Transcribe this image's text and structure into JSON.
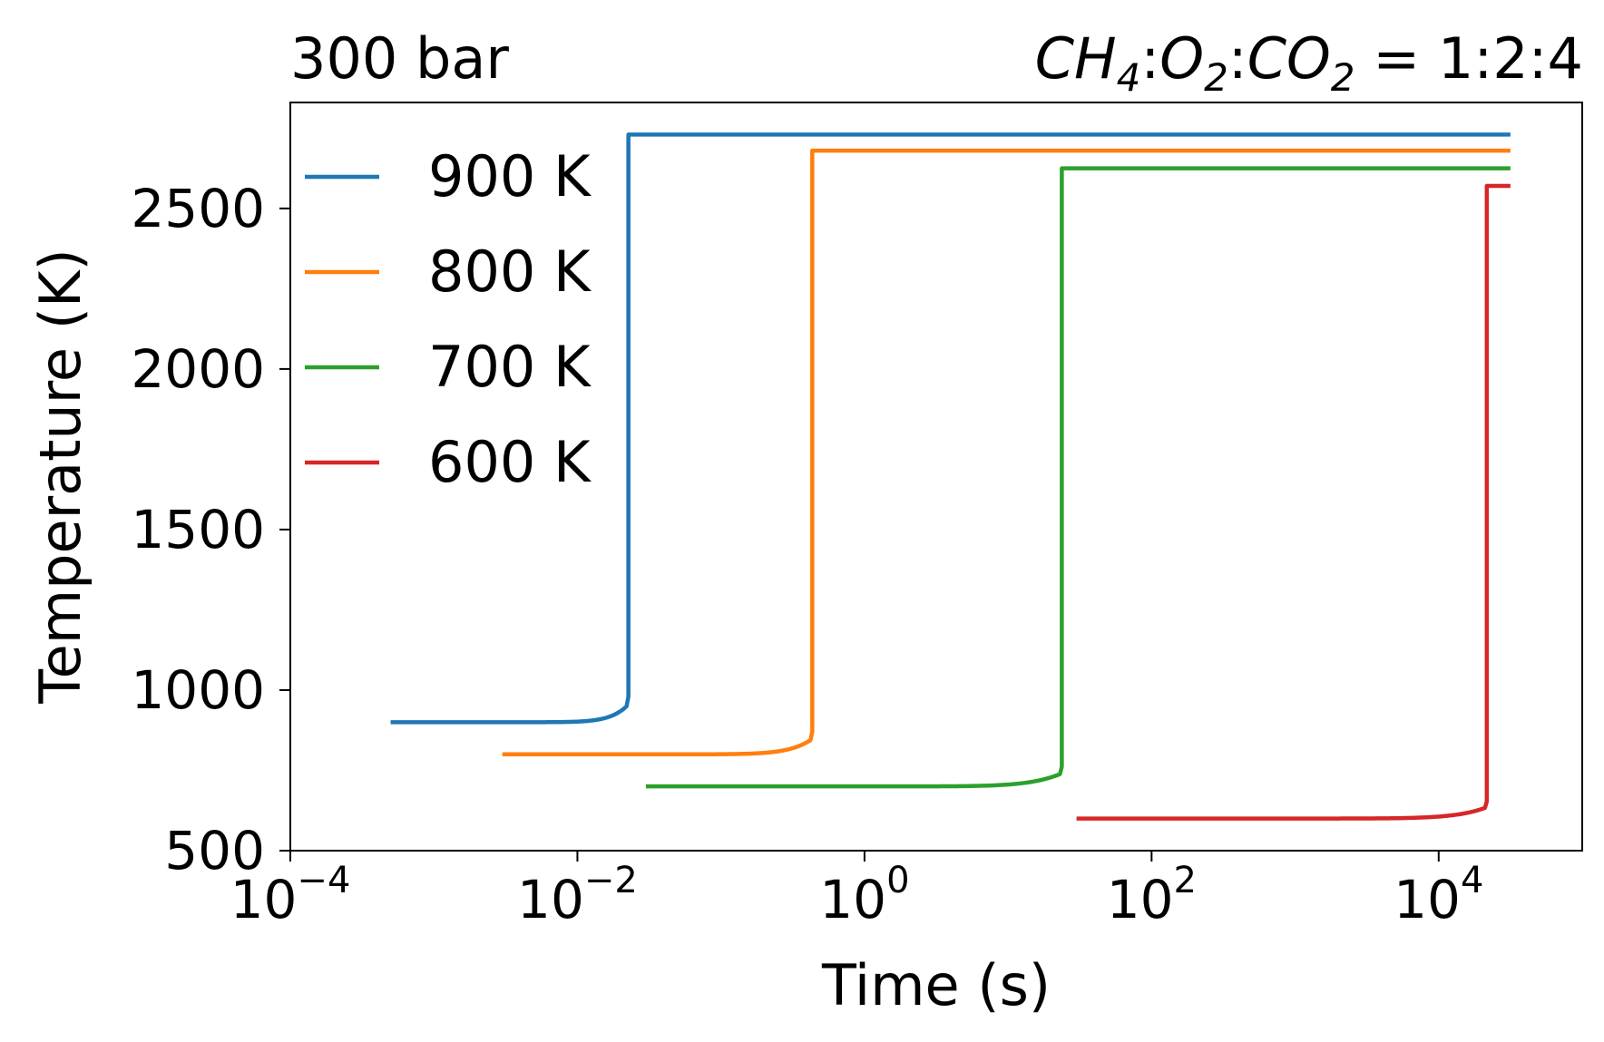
{
  "chart_data": {
    "type": "line",
    "title_left": "300 bar",
    "title_right": {
      "species_1": "CH",
      "sub_1": "4",
      "species_2": "O",
      "sub_2": "2",
      "species_3": "CO",
      "sub_3": "2",
      "separator": ":",
      "ratio": " = 1:2:4"
    },
    "xlabel": "Time (s)",
    "ylabel": "Temperature (K)",
    "xscale": "log",
    "xlim": [
      0.0001,
      100000
    ],
    "ylim": [
      500,
      2830
    ],
    "x_ticks": [
      {
        "base": "10",
        "exp": "−4",
        "value": 0.0001
      },
      {
        "base": "10",
        "exp": "−2",
        "value": 0.01
      },
      {
        "base": "10",
        "exp": "0",
        "value": 1
      },
      {
        "base": "10",
        "exp": "2",
        "value": 100
      },
      {
        "base": "10",
        "exp": "4",
        "value": 10000
      }
    ],
    "y_ticks": [
      {
        "label": "500",
        "value": 500
      },
      {
        "label": "1000",
        "value": 1000
      },
      {
        "label": "1500",
        "value": 1500
      },
      {
        "label": "2000",
        "value": 2000
      },
      {
        "label": "2500",
        "value": 2500
      }
    ],
    "grid": false,
    "legend_position": "upper-left",
    "series": [
      {
        "name": "900 K",
        "color": "#1f77b4",
        "t_start": 0.0005,
        "t_ignition": 0.022,
        "t_end": 31623,
        "T_initial": 900,
        "T_final": 2730
      },
      {
        "name": "800 K",
        "color": "#ff7f0e",
        "t_start": 0.003,
        "t_ignition": 0.42,
        "t_end": 31623,
        "T_initial": 800,
        "T_final": 2680
      },
      {
        "name": "700 K",
        "color": "#2ca02c",
        "t_start": 0.03,
        "t_ignition": 23,
        "t_end": 31623,
        "T_initial": 700,
        "T_final": 2625
      },
      {
        "name": "600 K",
        "color": "#d62728",
        "t_start": 30,
        "t_ignition": 21000,
        "t_end": 31623,
        "T_initial": 600,
        "T_final": 2570
      }
    ]
  }
}
